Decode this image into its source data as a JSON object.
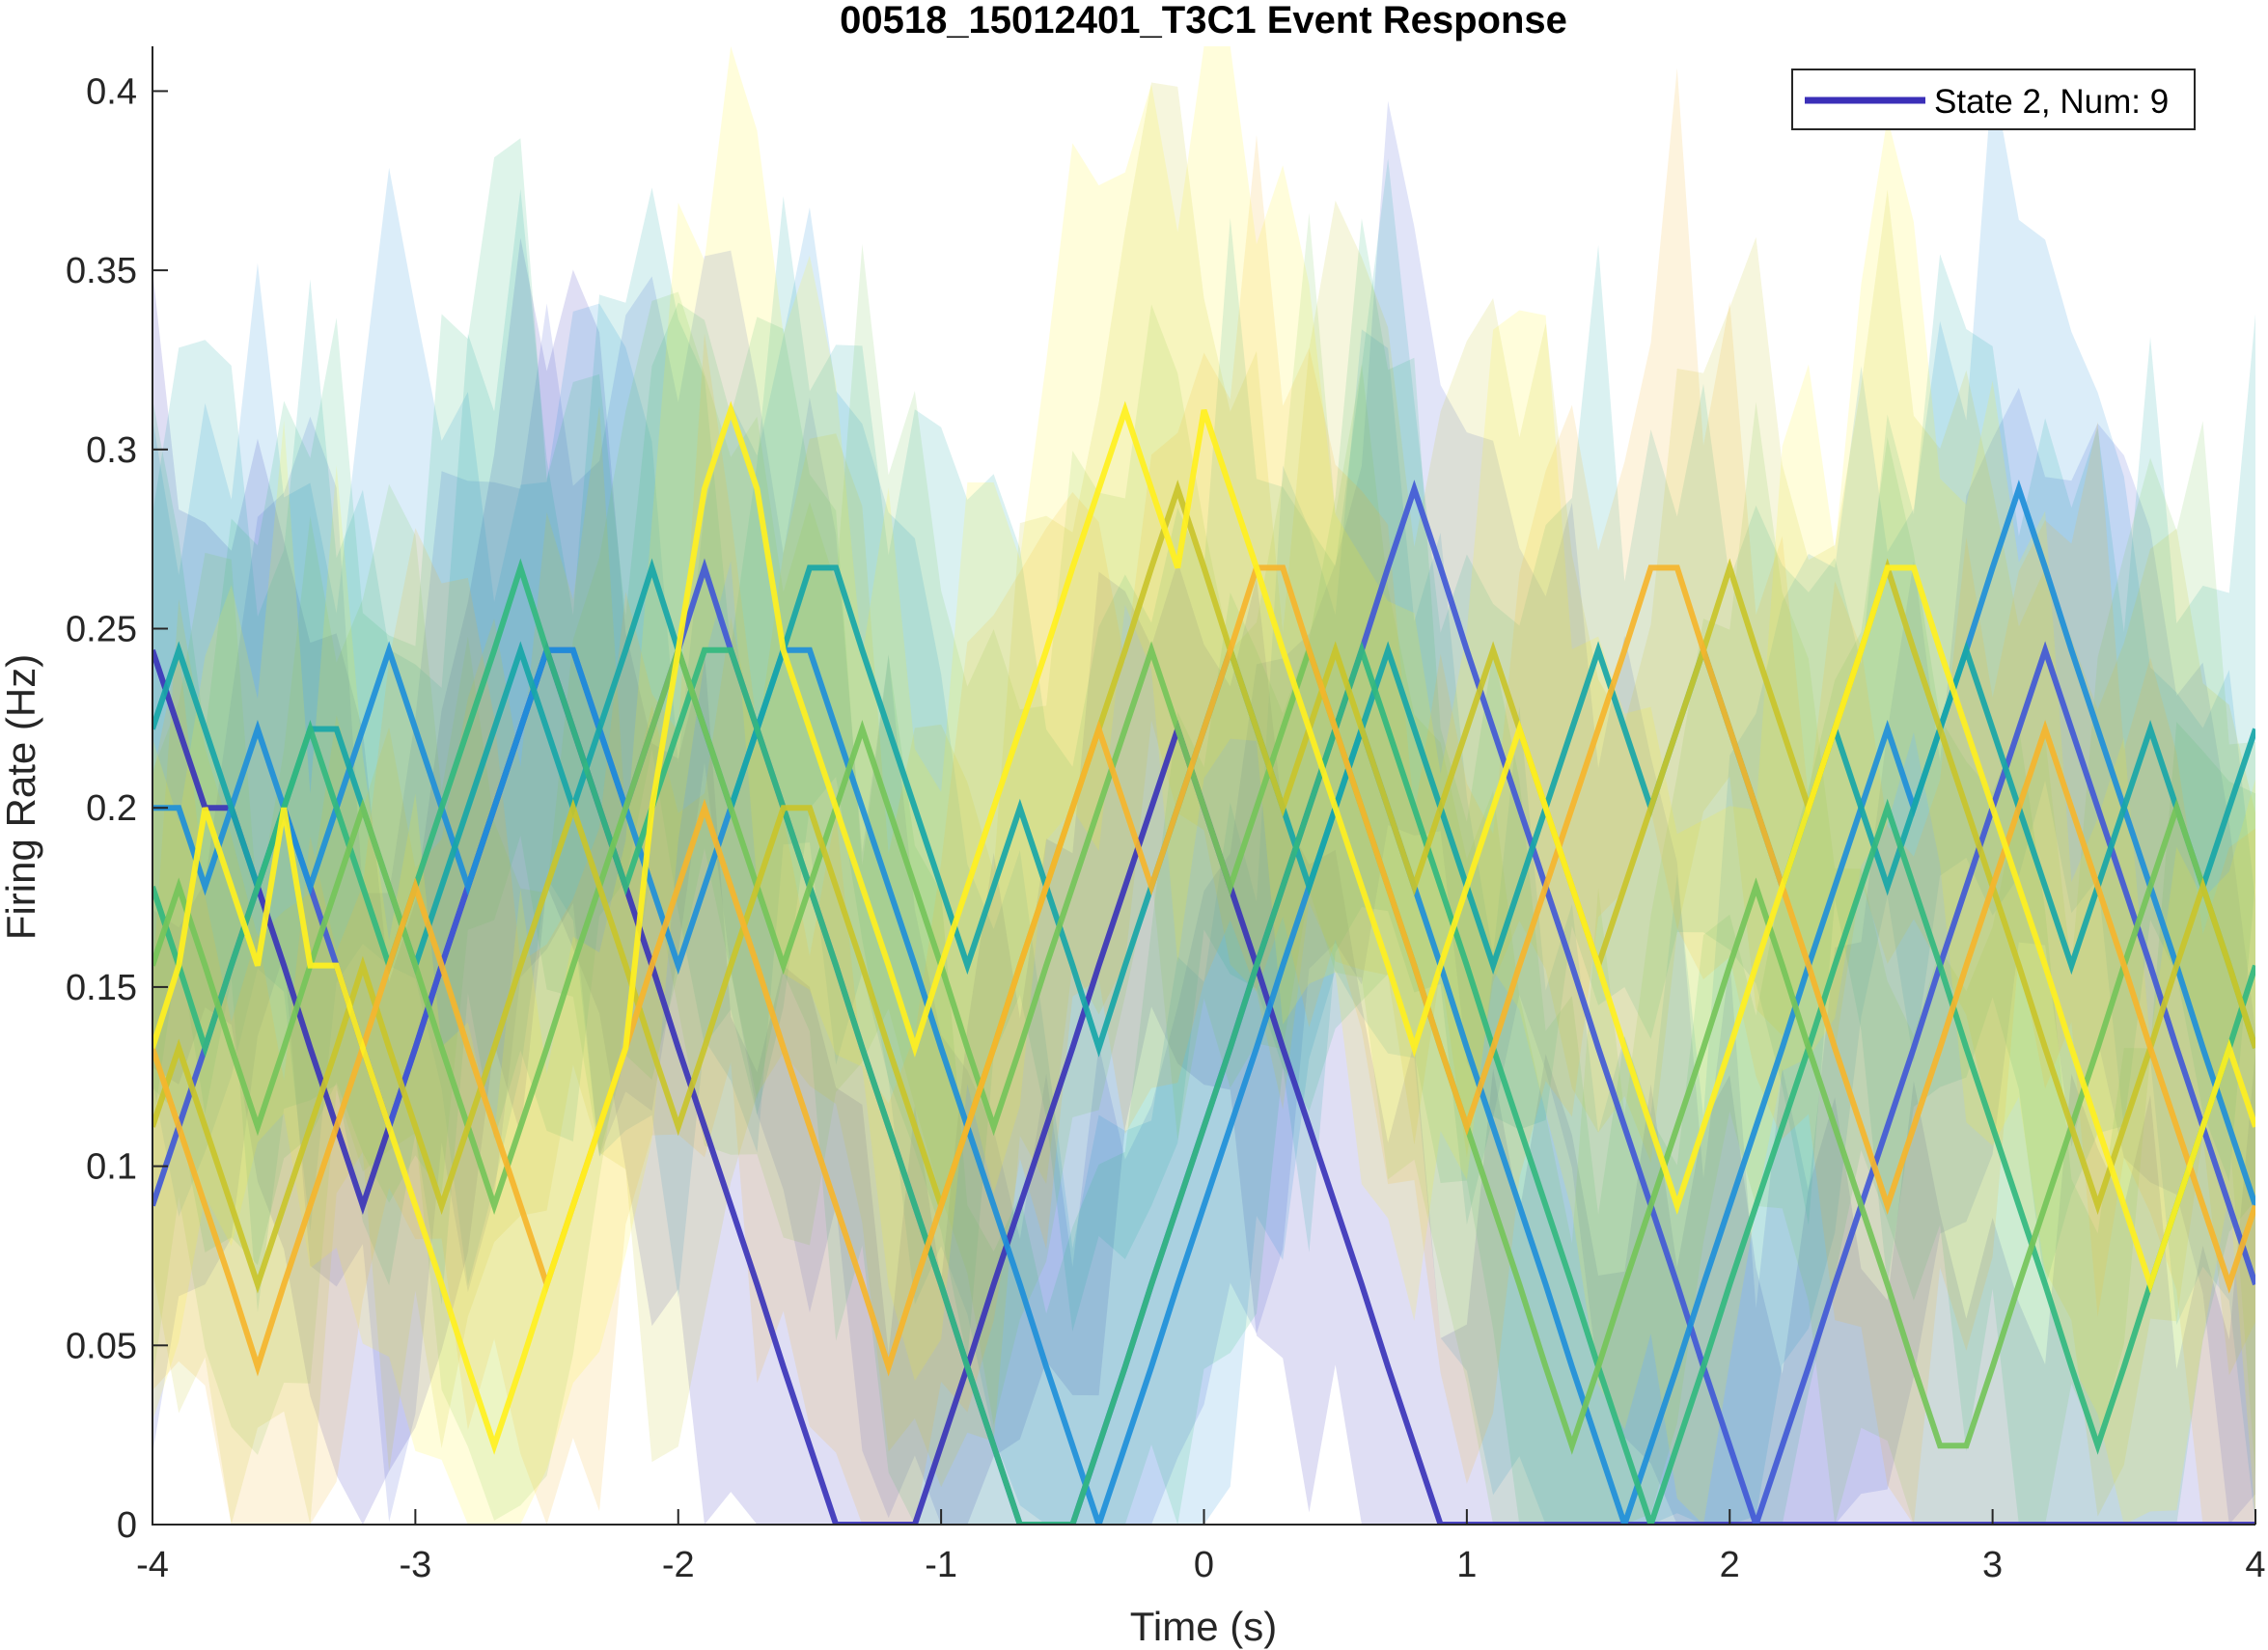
{
  "chart_data": {
    "type": "line",
    "title": "00518_15012401_T3C1 Event Response",
    "xlabel": "Time (s)",
    "ylabel": "Firing Rate (Hz)",
    "xlim": [
      -4,
      4
    ],
    "ylim": [
      0,
      0.4125
    ],
    "x_ticks": [
      -4,
      -3,
      -2,
      -1,
      0,
      1,
      2,
      3,
      4
    ],
    "x_tick_labels": [
      "-4",
      "-3",
      "-2",
      "-1",
      "0",
      "1",
      "2",
      "3",
      "4"
    ],
    "y_ticks": [
      0,
      0.05,
      0.1,
      0.15,
      0.2,
      0.25,
      0.3,
      0.35,
      0.4
    ],
    "y_tick_labels": [
      "0",
      "0.05",
      "0.1",
      "0.15",
      "0.2",
      "0.25",
      "0.3",
      "0.35",
      "0.4"
    ],
    "grid": false,
    "legend": {
      "position": "top-right",
      "entries": [
        {
          "label": "State 2, Num: 9",
          "color": "#3b2fb8"
        }
      ]
    },
    "time_step": 0.1,
    "x_start": -4,
    "series": [
      {
        "color": "#3b34b8",
        "values": [
          0.244,
          0.222,
          0.2,
          0.2,
          0.178,
          0.156,
          0.133,
          0.111,
          0.089,
          0.111,
          0.133,
          0.156,
          0.178,
          0.2,
          0.222,
          0.244,
          0.222,
          0.2,
          0.178,
          0.156,
          0.133,
          0.111,
          0.089,
          0.067,
          0.044,
          0.022,
          0,
          0,
          0,
          0,
          0.022,
          0.044,
          0.067,
          0.089,
          0.111,
          0.133,
          0.156,
          0.178,
          0.2,
          0.222,
          0.2,
          0.178,
          0.156,
          0.133,
          0.111,
          0.089,
          0.067,
          0.044,
          0.022,
          0,
          0,
          0,
          0,
          0,
          0,
          0,
          0,
          0,
          0,
          0,
          0,
          0,
          0,
          0,
          0,
          0,
          0,
          0,
          0,
          0,
          0,
          0,
          0,
          0,
          0,
          0,
          0,
          0,
          0,
          0,
          0
        ]
      },
      {
        "color": "#4259d6",
        "values": [
          0.089,
          0.111,
          0.133,
          0.156,
          0.178,
          0.2,
          0.178,
          0.156,
          0.133,
          0.111,
          0.133,
          0.156,
          0.178,
          0.2,
          0.222,
          0.244,
          0.244,
          0.222,
          0.2,
          0.222,
          0.244,
          0.267,
          0.244,
          0.222,
          0.2,
          0.178,
          0.156,
          0.133,
          0.111,
          0.089,
          0.067,
          0.044,
          0.022,
          0,
          0,
          0,
          0.022,
          0.044,
          0.067,
          0.089,
          0.111,
          0.133,
          0.156,
          0.178,
          0.2,
          0.222,
          0.244,
          0.267,
          0.289,
          0.267,
          0.244,
          0.222,
          0.2,
          0.178,
          0.156,
          0.133,
          0.111,
          0.089,
          0.067,
          0.044,
          0.022,
          0,
          0.022,
          0.044,
          0.067,
          0.089,
          0.111,
          0.133,
          0.156,
          0.178,
          0.2,
          0.222,
          0.244,
          0.222,
          0.2,
          0.178,
          0.156,
          0.133,
          0.111,
          0.089,
          0.067
        ]
      },
      {
        "color": "#1f8fd9",
        "values": [
          0.2,
          0.2,
          0.178,
          0.2,
          0.222,
          0.2,
          0.178,
          0.2,
          0.222,
          0.244,
          0.222,
          0.2,
          0.178,
          0.2,
          0.222,
          0.244,
          0.244,
          0.222,
          0.2,
          0.178,
          0.156,
          0.178,
          0.2,
          0.222,
          0.244,
          0.244,
          0.222,
          0.2,
          0.178,
          0.156,
          0.133,
          0.111,
          0.089,
          0.067,
          0.044,
          0.022,
          0,
          0.022,
          0.044,
          0.067,
          0.089,
          0.111,
          0.133,
          0.156,
          0.178,
          0.2,
          0.222,
          0.2,
          0.178,
          0.156,
          0.133,
          0.111,
          0.089,
          0.067,
          0.044,
          0.022,
          0,
          0.022,
          0.044,
          0.067,
          0.089,
          0.111,
          0.133,
          0.156,
          0.178,
          0.2,
          0.222,
          0.2,
          0.222,
          0.244,
          0.267,
          0.289,
          0.267,
          0.244,
          0.222,
          0.2,
          0.178,
          0.156,
          0.133,
          0.111,
          0.089
        ]
      },
      {
        "color": "#18a6a8",
        "values": [
          0.222,
          0.244,
          0.222,
          0.2,
          0.178,
          0.2,
          0.222,
          0.222,
          0.2,
          0.178,
          0.156,
          0.178,
          0.2,
          0.222,
          0.244,
          0.222,
          0.2,
          0.222,
          0.244,
          0.267,
          0.244,
          0.222,
          0.2,
          0.222,
          0.244,
          0.267,
          0.267,
          0.244,
          0.222,
          0.2,
          0.178,
          0.156,
          0.178,
          0.2,
          0.178,
          0.156,
          0.133,
          0.156,
          0.178,
          0.2,
          0.222,
          0.244,
          0.222,
          0.2,
          0.178,
          0.2,
          0.222,
          0.244,
          0.222,
          0.2,
          0.178,
          0.156,
          0.178,
          0.2,
          0.222,
          0.244,
          0.222,
          0.2,
          0.222,
          0.244,
          0.222,
          0.2,
          0.178,
          0.2,
          0.222,
          0.2,
          0.178,
          0.2,
          0.222,
          0.244,
          0.222,
          0.2,
          0.178,
          0.156,
          0.178,
          0.2,
          0.222,
          0.2,
          0.178,
          0.2,
          0.222
        ]
      },
      {
        "color": "#33b87f",
        "values": [
          0.178,
          0.156,
          0.133,
          0.156,
          0.178,
          0.2,
          0.222,
          0.2,
          0.178,
          0.156,
          0.178,
          0.2,
          0.222,
          0.244,
          0.267,
          0.244,
          0.222,
          0.2,
          0.178,
          0.2,
          0.222,
          0.244,
          0.244,
          0.222,
          0.2,
          0.178,
          0.156,
          0.133,
          0.111,
          0.089,
          0.067,
          0.044,
          0.022,
          0,
          0,
          0,
          0.022,
          0.044,
          0.067,
          0.089,
          0.111,
          0.133,
          0.156,
          0.178,
          0.2,
          0.222,
          0.244,
          0.222,
          0.2,
          0.178,
          0.156,
          0.133,
          0.111,
          0.089,
          0.067,
          0.044,
          0.022,
          0,
          0.022,
          0.044,
          0.067,
          0.089,
          0.111,
          0.133,
          0.156,
          0.178,
          0.2,
          0.178,
          0.156,
          0.133,
          0.111,
          0.089,
          0.067,
          0.044,
          0.022,
          0.044,
          0.067,
          0.089,
          0.111,
          0.133,
          0.156
        ]
      },
      {
        "color": "#75c45a",
        "values": [
          0.156,
          0.178,
          0.156,
          0.133,
          0.111,
          0.133,
          0.156,
          0.178,
          0.2,
          0.178,
          0.156,
          0.133,
          0.111,
          0.089,
          0.111,
          0.133,
          0.156,
          0.178,
          0.2,
          0.222,
          0.244,
          0.222,
          0.2,
          0.178,
          0.156,
          0.178,
          0.2,
          0.222,
          0.2,
          0.178,
          0.156,
          0.133,
          0.111,
          0.133,
          0.156,
          0.178,
          0.2,
          0.222,
          0.244,
          0.222,
          0.2,
          0.178,
          0.2,
          0.222,
          0.244,
          0.222,
          0.2,
          0.178,
          0.156,
          0.133,
          0.111,
          0.089,
          0.067,
          0.044,
          0.022,
          0.044,
          0.067,
          0.089,
          0.111,
          0.133,
          0.156,
          0.178,
          0.156,
          0.133,
          0.111,
          0.089,
          0.067,
          0.044,
          0.022,
          0.022,
          0.044,
          0.067,
          0.089,
          0.111,
          0.133,
          0.156,
          0.178,
          0.2,
          0.178,
          0.156,
          0.133
        ]
      },
      {
        "color": "#c9c42b",
        "values": [
          0.111,
          0.133,
          0.111,
          0.089,
          0.067,
          0.089,
          0.111,
          0.133,
          0.156,
          0.133,
          0.111,
          0.089,
          0.111,
          0.133,
          0.156,
          0.178,
          0.2,
          0.178,
          0.156,
          0.133,
          0.111,
          0.133,
          0.156,
          0.178,
          0.2,
          0.2,
          0.178,
          0.156,
          0.133,
          0.111,
          0.089,
          0.111,
          0.133,
          0.156,
          0.178,
          0.2,
          0.222,
          0.244,
          0.267,
          0.289,
          0.267,
          0.244,
          0.222,
          0.2,
          0.222,
          0.244,
          0.222,
          0.2,
          0.178,
          0.2,
          0.222,
          0.244,
          0.222,
          0.2,
          0.178,
          0.156,
          0.178,
          0.2,
          0.222,
          0.244,
          0.267,
          0.244,
          0.222,
          0.2,
          0.222,
          0.244,
          0.267,
          0.244,
          0.222,
          0.2,
          0.178,
          0.156,
          0.133,
          0.111,
          0.089,
          0.111,
          0.133,
          0.156,
          0.178,
          0.156,
          0.133
        ]
      },
      {
        "color": "#f5b52c",
        "values": [
          0.133,
          0.111,
          0.089,
          0.067,
          0.044,
          0.067,
          0.089,
          0.111,
          0.133,
          0.156,
          0.178,
          0.156,
          0.133,
          0.111,
          0.089,
          0.067,
          0.089,
          0.111,
          0.133,
          0.156,
          0.178,
          0.2,
          0.178,
          0.156,
          0.133,
          0.111,
          0.089,
          0.067,
          0.044,
          0.067,
          0.089,
          0.111,
          0.133,
          0.156,
          0.178,
          0.2,
          0.222,
          0.2,
          0.178,
          0.2,
          0.222,
          0.244,
          0.267,
          0.267,
          0.244,
          0.222,
          0.2,
          0.178,
          0.156,
          0.133,
          0.111,
          0.133,
          0.156,
          0.178,
          0.2,
          0.222,
          0.244,
          0.267,
          0.267,
          0.244,
          0.222,
          0.2,
          0.178,
          0.156,
          0.133,
          0.111,
          0.089,
          0.111,
          0.133,
          0.156,
          0.178,
          0.2,
          0.222,
          0.2,
          0.178,
          0.156,
          0.133,
          0.111,
          0.089,
          0.067,
          0.089
        ]
      },
      {
        "color": "#fff01f",
        "values": [
          0.133,
          0.156,
          0.2,
          0.178,
          0.156,
          0.2,
          0.156,
          0.156,
          0.133,
          0.111,
          0.089,
          0.067,
          0.044,
          0.022,
          0.044,
          0.067,
          0.089,
          0.111,
          0.133,
          0.2,
          0.244,
          0.289,
          0.311,
          0.289,
          0.244,
          0.222,
          0.2,
          0.178,
          0.156,
          0.133,
          0.156,
          0.178,
          0.2,
          0.222,
          0.244,
          0.267,
          0.289,
          0.311,
          0.289,
          0.267,
          0.311,
          0.289,
          0.267,
          0.244,
          0.222,
          0.2,
          0.178,
          0.156,
          0.133,
          0.156,
          0.178,
          0.2,
          0.222,
          0.2,
          0.178,
          0.156,
          0.133,
          0.111,
          0.089,
          0.111,
          0.133,
          0.156,
          0.178,
          0.2,
          0.222,
          0.244,
          0.267,
          0.267,
          0.244,
          0.222,
          0.2,
          0.178,
          0.156,
          0.133,
          0.111,
          0.089,
          0.067,
          0.089,
          0.111,
          0.133,
          0.111
        ]
      }
    ]
  }
}
